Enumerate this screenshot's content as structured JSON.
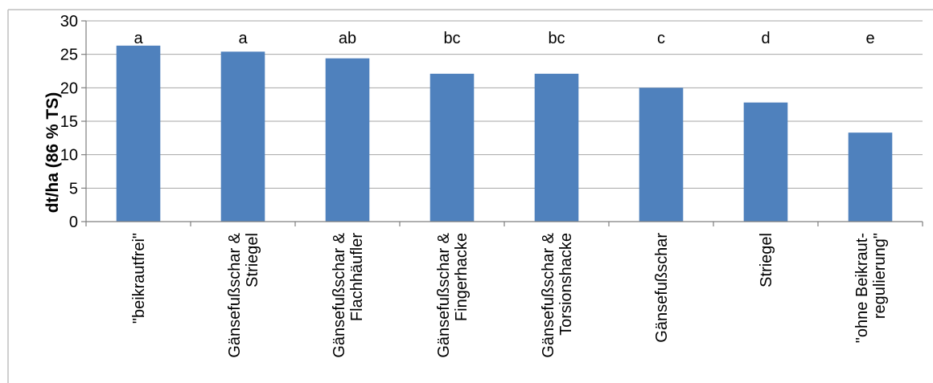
{
  "chart_data": {
    "type": "bar",
    "title": "",
    "xlabel": "",
    "ylabel": "dt/ha (86 % TS)",
    "ylim": [
      0,
      30
    ],
    "yticks": [
      0,
      5,
      10,
      15,
      20,
      25,
      30
    ],
    "grid": true,
    "legend": "none",
    "bar_color": "#4f81bd",
    "categories": [
      [
        "\"beikrautfrei\""
      ],
      [
        "Gänsefußschar &",
        "Striegel"
      ],
      [
        "Gänsefußschar &",
        "Flachhäufler"
      ],
      [
        "Gänsefußschar &",
        "Fingerhacke"
      ],
      [
        "Gänsefußschar &",
        "Torsionshacke"
      ],
      [
        "Gänsefußschar"
      ],
      [
        "Striegel"
      ],
      [
        "\"ohne Beikraut-",
        "regulierung\""
      ]
    ],
    "values": [
      26.3,
      25.4,
      24.4,
      22.1,
      22.1,
      20.0,
      17.8,
      13.3
    ],
    "significance_labels": [
      "a",
      "a",
      "ab",
      "bc",
      "bc",
      "c",
      "d",
      "e"
    ]
  }
}
